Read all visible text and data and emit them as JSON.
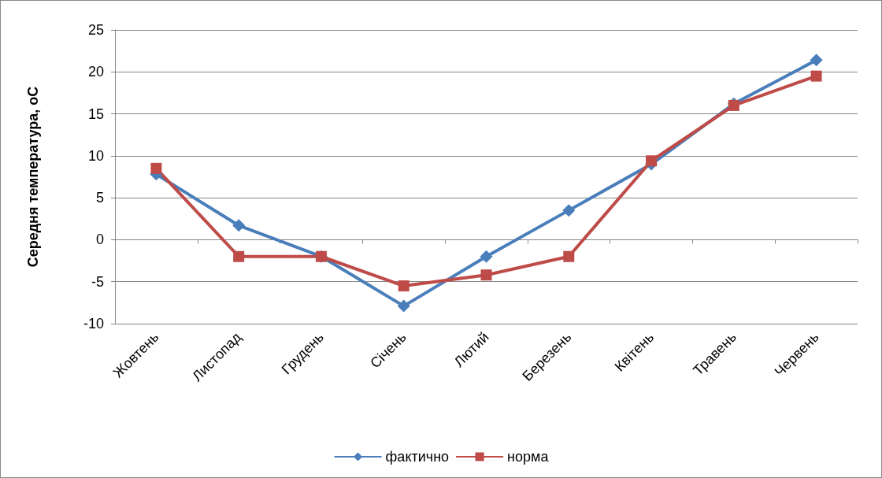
{
  "chart_data": {
    "type": "line",
    "ylabel": "Середня температура, оС",
    "categories": [
      "Жовтень",
      "Листопад",
      "Грудень",
      "Січень",
      "Лютий",
      "Березень",
      "Квітень",
      "Травень",
      "Червень"
    ],
    "series": [
      {
        "name": "фактично",
        "color": "#4a7ebb",
        "marker": "diamond",
        "values": [
          7.8,
          1.7,
          -2.0,
          -7.9,
          -2.0,
          3.5,
          9.0,
          16.2,
          21.4
        ]
      },
      {
        "name": "норма",
        "color": "#be4b48",
        "marker": "square",
        "values": [
          8.5,
          -2.0,
          -2.0,
          -5.5,
          -4.2,
          -2.0,
          9.4,
          16.0,
          19.5
        ]
      }
    ],
    "ylim": [
      -10,
      25
    ],
    "yticks": [
      -10,
      -5,
      0,
      5,
      10,
      15,
      20,
      25
    ],
    "grid": "y",
    "legend": "bottom",
    "line_style": "solid"
  }
}
